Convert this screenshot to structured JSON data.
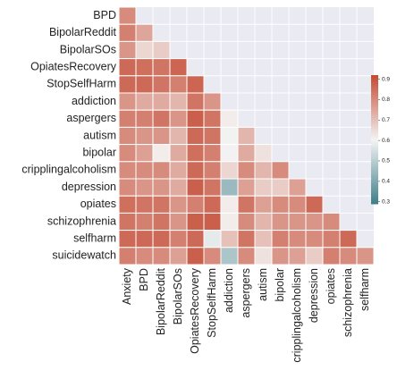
{
  "chart_data": {
    "type": "heatmap",
    "x_categories": [
      "Anxiety",
      "BPD",
      "BipolarReddit",
      "BipolarSOs",
      "OpiatesRecovery",
      "StopSelfHarm",
      "addiction",
      "aspergers",
      "autism",
      "bipolar",
      "cripplingalcoholism",
      "depression",
      "opiates",
      "schizophrenia",
      "selfharm"
    ],
    "y_categories": [
      "BPD",
      "BipolarReddit",
      "BipolarSOs",
      "OpiatesRecovery",
      "StopSelfHarm",
      "addiction",
      "aspergers",
      "autism",
      "bipolar",
      "cripplingalcoholism",
      "depression",
      "opiates",
      "schizophrenia",
      "selfharm",
      "suicidewatch"
    ],
    "values": [
      [
        0.8,
        null,
        null,
        null,
        null,
        null,
        null,
        null,
        null,
        null,
        null,
        null,
        null,
        null,
        null
      ],
      [
        0.82,
        0.75,
        null,
        null,
        null,
        null,
        null,
        null,
        null,
        null,
        null,
        null,
        null,
        null,
        null
      ],
      [
        0.78,
        0.66,
        0.68,
        null,
        null,
        null,
        null,
        null,
        null,
        null,
        null,
        null,
        null,
        null,
        null
      ],
      [
        0.86,
        0.85,
        0.84,
        0.87,
        null,
        null,
        null,
        null,
        null,
        null,
        null,
        null,
        null,
        null,
        null
      ],
      [
        0.86,
        0.86,
        0.84,
        0.82,
        0.87,
        null,
        null,
        null,
        null,
        null,
        null,
        null,
        null,
        null,
        null
      ],
      [
        0.78,
        0.74,
        0.74,
        0.72,
        0.84,
        0.78,
        null,
        null,
        null,
        null,
        null,
        null,
        null,
        null,
        null
      ],
      [
        0.82,
        0.82,
        0.84,
        0.78,
        0.88,
        0.84,
        0.62,
        null,
        null,
        null,
        null,
        null,
        null,
        null,
        null
      ],
      [
        0.8,
        0.78,
        0.78,
        0.72,
        0.86,
        0.84,
        0.6,
        0.72,
        null,
        null,
        null,
        null,
        null,
        null,
        null
      ],
      [
        0.8,
        0.76,
        0.62,
        0.74,
        0.85,
        0.82,
        0.61,
        0.74,
        0.64,
        null,
        null,
        null,
        null,
        null,
        null
      ],
      [
        0.8,
        0.8,
        0.8,
        0.74,
        0.86,
        0.82,
        0.66,
        0.8,
        0.72,
        0.8,
        null,
        null,
        null,
        null,
        null
      ],
      [
        0.8,
        0.78,
        0.78,
        0.74,
        0.88,
        0.84,
        0.45,
        0.76,
        0.68,
        0.68,
        0.76,
        null,
        null,
        null,
        null
      ],
      [
        0.85,
        0.84,
        0.84,
        0.78,
        0.82,
        0.86,
        0.62,
        0.84,
        0.76,
        0.8,
        0.8,
        0.86,
        null,
        null,
        null
      ],
      [
        0.84,
        0.82,
        0.84,
        0.78,
        0.88,
        0.88,
        0.62,
        0.8,
        0.72,
        0.78,
        0.78,
        0.78,
        0.8,
        null,
        null
      ],
      [
        0.86,
        0.86,
        0.86,
        0.82,
        0.86,
        0.58,
        0.7,
        0.84,
        0.7,
        0.82,
        0.8,
        0.8,
        0.82,
        0.86,
        null
      ],
      [
        0.82,
        0.8,
        0.8,
        0.76,
        0.88,
        0.8,
        0.48,
        0.8,
        0.64,
        0.78,
        0.76,
        0.68,
        0.82,
        0.8,
        0.78
      ]
    ],
    "colormap": [
      "#3d7e88",
      "#f4f4f4",
      "#c44a32"
    ],
    "clim": [
      0.29,
      0.92
    ],
    "cticks": [
      0.3,
      0.4,
      0.5,
      0.6,
      0.7,
      0.8,
      0.9
    ]
  }
}
